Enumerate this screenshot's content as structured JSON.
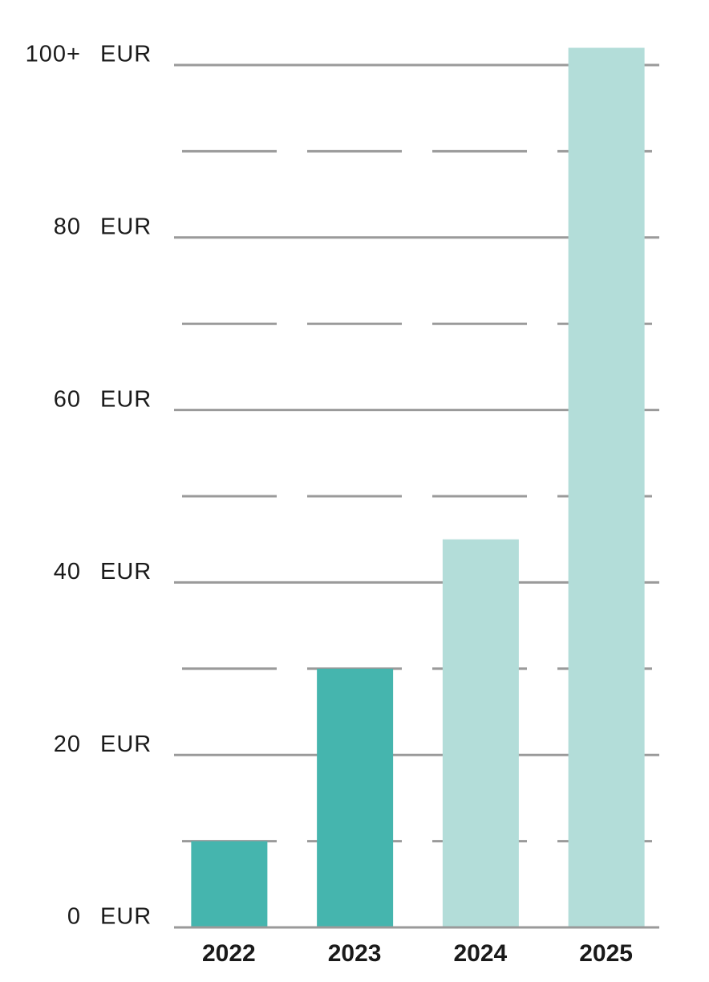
{
  "chart_data": {
    "type": "bar",
    "categories": [
      "2022",
      "2023",
      "2024",
      "2025"
    ],
    "values": [
      10,
      30,
      45,
      102
    ],
    "colors": [
      "#45b5ae",
      "#45b5ae",
      "#b3ddd9",
      "#b3ddd9"
    ],
    "ylim": [
      0,
      100
    ],
    "yticks": [
      0,
      20,
      40,
      60,
      80,
      {
        "value": 100,
        "label": "100+"
      }
    ],
    "minor_yticks": [
      10,
      30,
      50,
      70,
      90
    ],
    "y_unit": "EUR",
    "grid": true
  }
}
